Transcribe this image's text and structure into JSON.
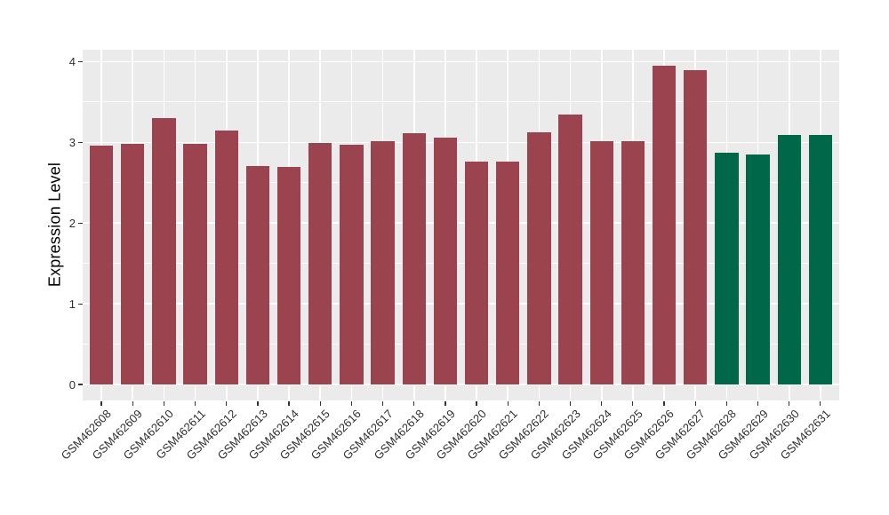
{
  "chart_data": {
    "type": "bar",
    "title": "",
    "xlabel": "",
    "ylabel": "Expression Level",
    "ylim": [
      0,
      4
    ],
    "y_major_ticks": [
      0,
      1,
      2,
      3,
      4
    ],
    "y_minor_ticks": [
      0.5,
      1.5,
      2.5,
      3.5
    ],
    "categories": [
      "GSM462608",
      "GSM462609",
      "GSM462610",
      "GSM462611",
      "GSM462612",
      "GSM462613",
      "GSM462614",
      "GSM462615",
      "GSM462616",
      "GSM462617",
      "GSM462618",
      "GSM462619",
      "GSM462620",
      "GSM462621",
      "GSM462622",
      "GSM462623",
      "GSM462624",
      "GSM462625",
      "GSM462626",
      "GSM462627",
      "GSM462628",
      "GSM462629",
      "GSM462630",
      "GSM462631"
    ],
    "values": [
      2.96,
      2.98,
      3.3,
      2.98,
      3.15,
      2.71,
      2.7,
      2.99,
      2.97,
      3.02,
      3.11,
      3.06,
      2.76,
      2.76,
      3.13,
      3.35,
      3.02,
      3.02,
      3.95,
      3.9,
      2.87,
      2.85,
      3.09,
      3.09
    ],
    "group_index": [
      0,
      0,
      0,
      0,
      0,
      0,
      0,
      0,
      0,
      0,
      0,
      0,
      0,
      0,
      0,
      0,
      0,
      0,
      0,
      0,
      1,
      1,
      1,
      1
    ],
    "group_colors": [
      "#9B4450",
      "#006849"
    ],
    "layout": {
      "panel_background": "#EBEBEB",
      "grid_color": "#FFFFFF",
      "tick_color": "#333333",
      "tick_label_color": "#303030",
      "x_tick_rotation_deg": 45,
      "legend": "none",
      "grid": "on"
    }
  }
}
